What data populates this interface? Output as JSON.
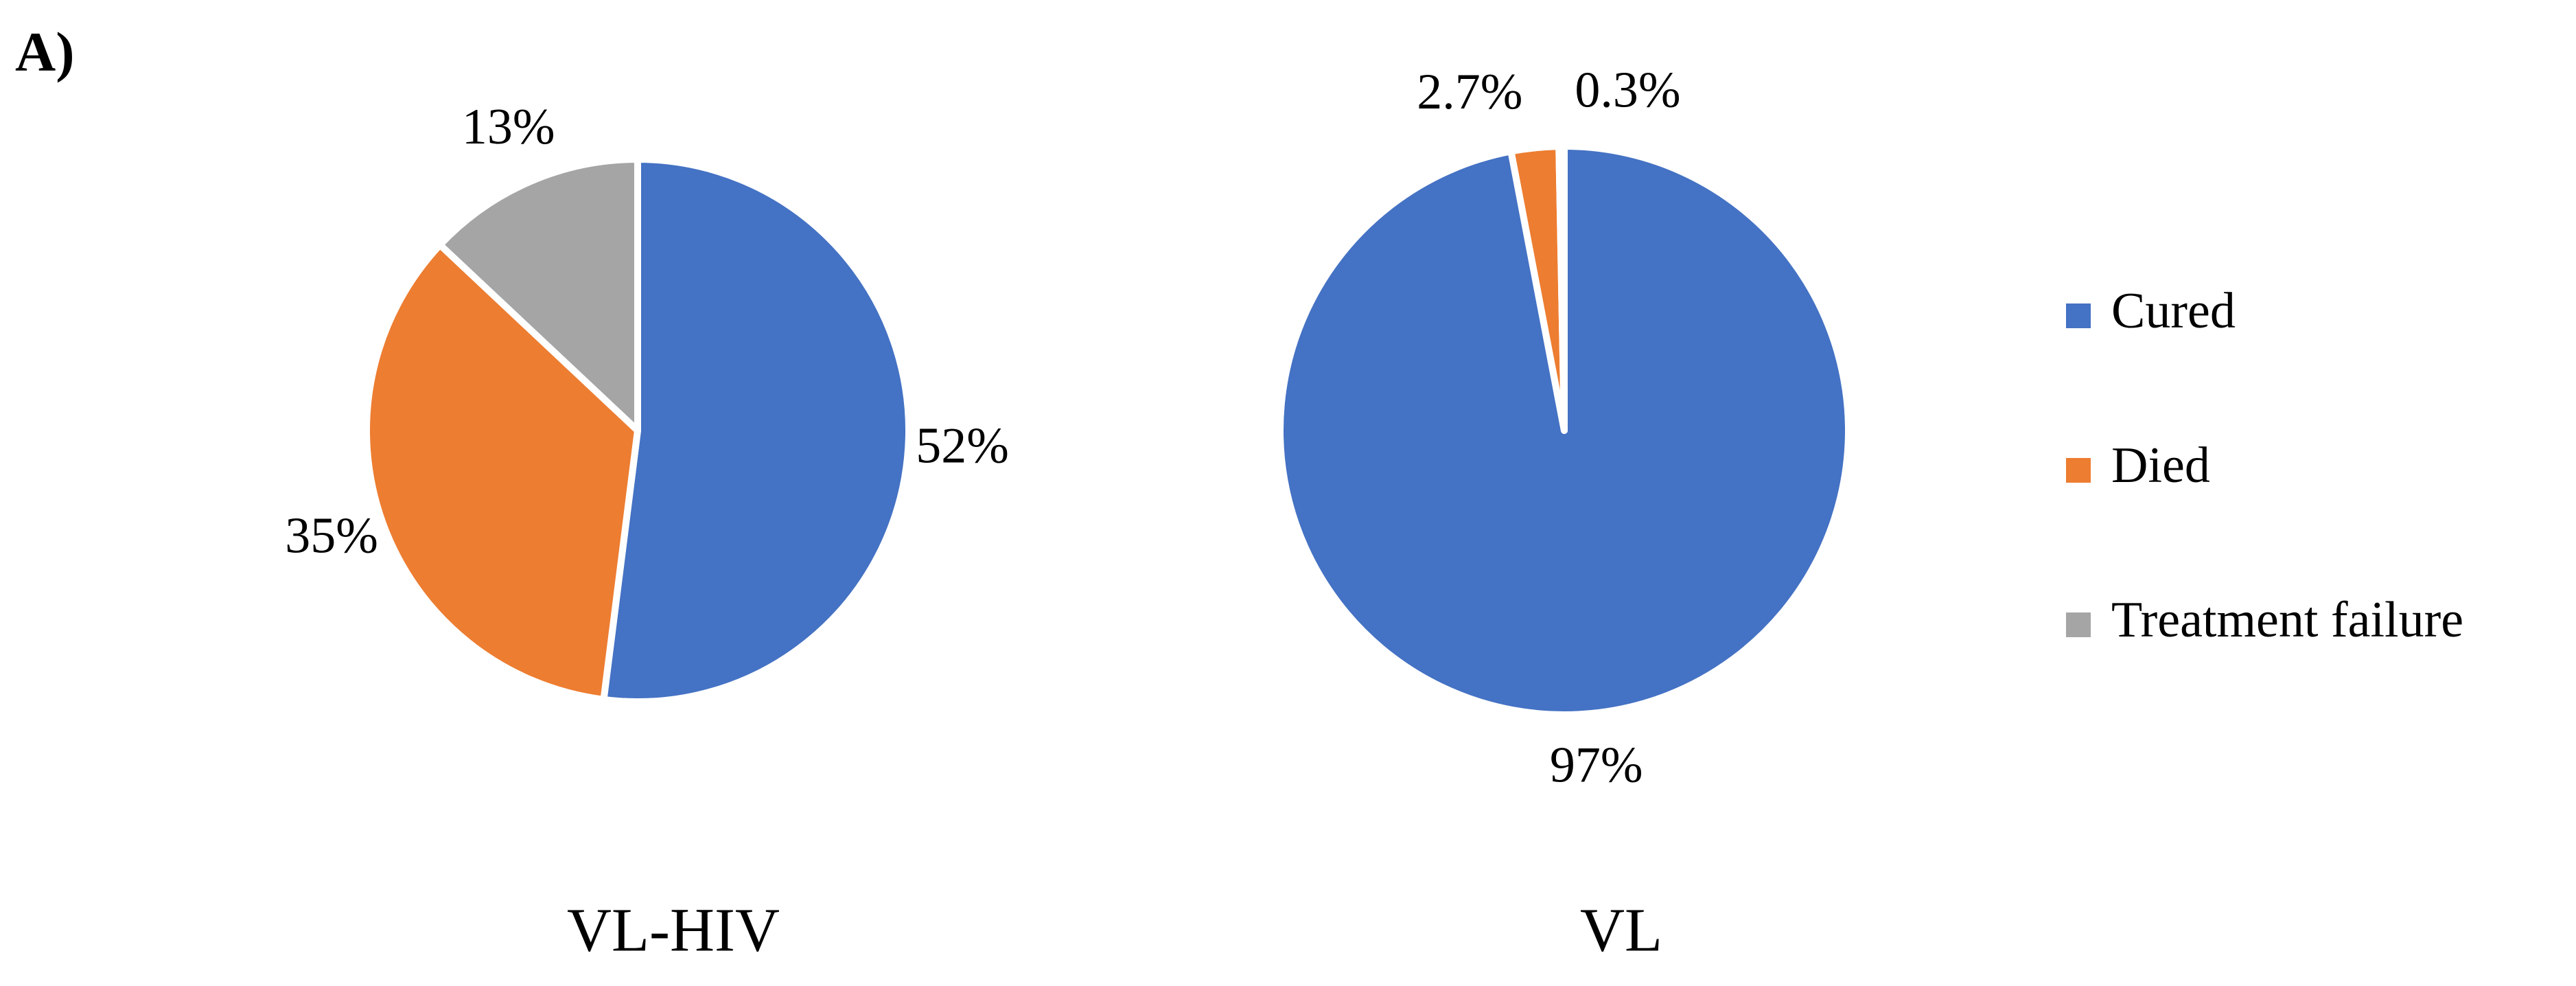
{
  "panel_label": "A)",
  "chart_data": [
    {
      "type": "pie",
      "title": "VL-HIV",
      "categories": [
        "Cured",
        "Died",
        "Treatment failure"
      ],
      "values": [
        52,
        35,
        13
      ],
      "value_labels": [
        "52%",
        "35%",
        "13%"
      ],
      "colors": [
        "#4472c4",
        "#ed7d31",
        "#a5a5a5"
      ],
      "legend": "right"
    },
    {
      "type": "pie",
      "title": "VL",
      "categories": [
        "Cured",
        "Died",
        "Treatment failure"
      ],
      "values": [
        97,
        2.7,
        0.3
      ],
      "value_labels": [
        "97%",
        "2.7%",
        "0.3%"
      ],
      "colors": [
        "#4472c4",
        "#ed7d31",
        "#a5a5a5"
      ]
    }
  ]
}
